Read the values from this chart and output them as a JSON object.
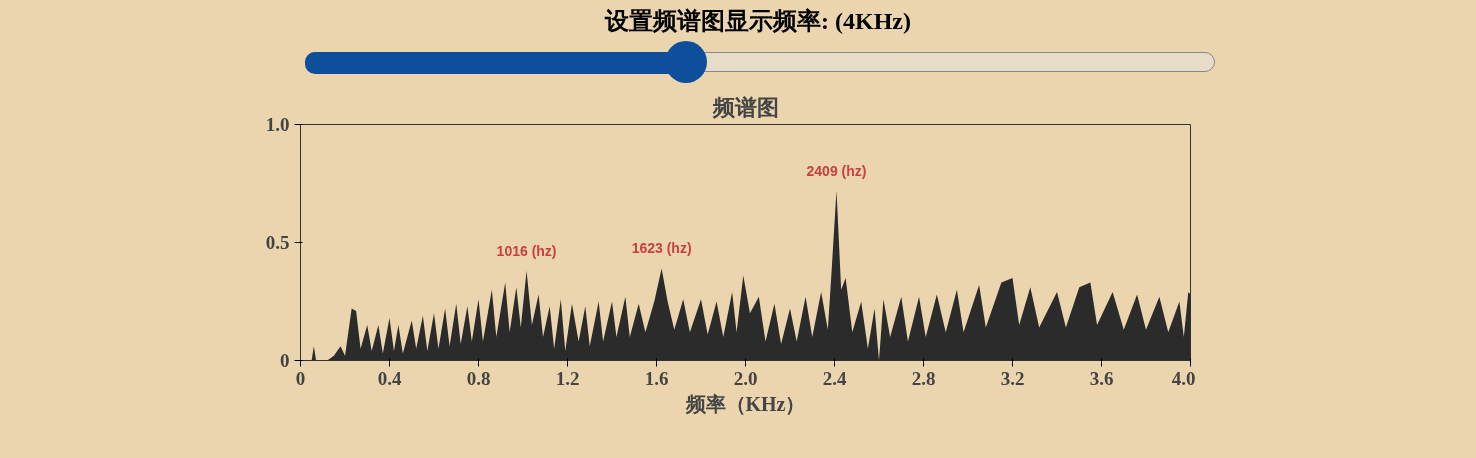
{
  "chart_data": {
    "type": "area",
    "title": "设置频谱图显示频率: (4KHz)",
    "subtitle": "频谱图",
    "xlabel": "频率（KHz）",
    "x": [
      0.0,
      0.05,
      0.06,
      0.07,
      0.12,
      0.15,
      0.18,
      0.2,
      0.23,
      0.25,
      0.27,
      0.3,
      0.32,
      0.35,
      0.37,
      0.4,
      0.42,
      0.44,
      0.46,
      0.5,
      0.52,
      0.55,
      0.57,
      0.6,
      0.62,
      0.65,
      0.67,
      0.7,
      0.72,
      0.75,
      0.77,
      0.8,
      0.82,
      0.86,
      0.88,
      0.92,
      0.94,
      0.97,
      0.99,
      1.016,
      1.04,
      1.07,
      1.09,
      1.12,
      1.14,
      1.17,
      1.19,
      1.22,
      1.25,
      1.28,
      1.3,
      1.34,
      1.36,
      1.4,
      1.42,
      1.46,
      1.48,
      1.52,
      1.55,
      1.59,
      1.623,
      1.65,
      1.68,
      1.72,
      1.75,
      1.8,
      1.83,
      1.87,
      1.9,
      1.94,
      1.96,
      1.99,
      2.02,
      2.06,
      2.09,
      2.13,
      2.16,
      2.2,
      2.23,
      2.27,
      2.3,
      2.34,
      2.37,
      2.385,
      2.409,
      2.43,
      2.45,
      2.48,
      2.52,
      2.55,
      2.58,
      2.6,
      2.62,
      2.65,
      2.7,
      2.73,
      2.78,
      2.81,
      2.86,
      2.9,
      2.95,
      2.98,
      3.05,
      3.08,
      3.15,
      3.2,
      3.23,
      3.28,
      3.32,
      3.4,
      3.44,
      3.5,
      3.55,
      3.58,
      3.65,
      3.7,
      3.76,
      3.8,
      3.86,
      3.9,
      3.95,
      3.97,
      3.99,
      4.0
    ],
    "series": [
      {
        "color": "#2b2b2b",
        "values": [
          0,
          0,
          0.06,
          0,
          0,
          0.02,
          0.06,
          0.02,
          0.22,
          0.21,
          0.05,
          0.15,
          0.04,
          0.15,
          0.03,
          0.18,
          0.04,
          0.15,
          0.03,
          0.17,
          0.05,
          0.19,
          0.04,
          0.2,
          0.05,
          0.22,
          0.06,
          0.24,
          0.07,
          0.23,
          0.08,
          0.26,
          0.08,
          0.3,
          0.1,
          0.33,
          0.12,
          0.31,
          0.14,
          0.38,
          0.15,
          0.28,
          0.1,
          0.23,
          0.05,
          0.26,
          0.04,
          0.24,
          0.08,
          0.23,
          0.06,
          0.25,
          0.08,
          0.25,
          0.1,
          0.27,
          0.1,
          0.24,
          0.12,
          0.25,
          0.39,
          0.25,
          0.13,
          0.26,
          0.12,
          0.26,
          0.11,
          0.25,
          0.1,
          0.29,
          0.12,
          0.36,
          0.2,
          0.27,
          0.08,
          0.24,
          0.07,
          0.22,
          0.08,
          0.27,
          0.1,
          0.29,
          0.13,
          0.35,
          0.72,
          0.3,
          0.35,
          0.12,
          0.25,
          0.05,
          0.22,
          0.0,
          0.26,
          0.1,
          0.27,
          0.08,
          0.27,
          0.1,
          0.28,
          0.12,
          0.3,
          0.12,
          0.32,
          0.14,
          0.33,
          0.35,
          0.15,
          0.31,
          0.14,
          0.29,
          0.14,
          0.31,
          0.33,
          0.15,
          0.29,
          0.13,
          0.28,
          0.13,
          0.27,
          0.12,
          0.25,
          0.1,
          0.29,
          0.28
        ]
      }
    ],
    "xlim": [
      0,
      4.0
    ],
    "ylim": [
      0,
      1.0
    ],
    "xticks": [
      0,
      0.4,
      0.8,
      1.2,
      1.6,
      {
        "value": 2.0,
        "label": "2.0"
      },
      2.4,
      2.8,
      3.2,
      3.6,
      {
        "value": 4.0,
        "label": "4.0"
      }
    ],
    "yticks": [
      0,
      0.5,
      {
        "value": 1.0,
        "label": "1.0"
      }
    ],
    "annotations": [
      {
        "text": "1016 (hz)",
        "x": 1.016,
        "y": 0.38
      },
      {
        "text": "1623 (hz)",
        "x": 1.623,
        "y": 0.39
      },
      {
        "text": "2409 (hz)",
        "x": 2.409,
        "y": 0.72
      }
    ],
    "grid": false
  }
}
